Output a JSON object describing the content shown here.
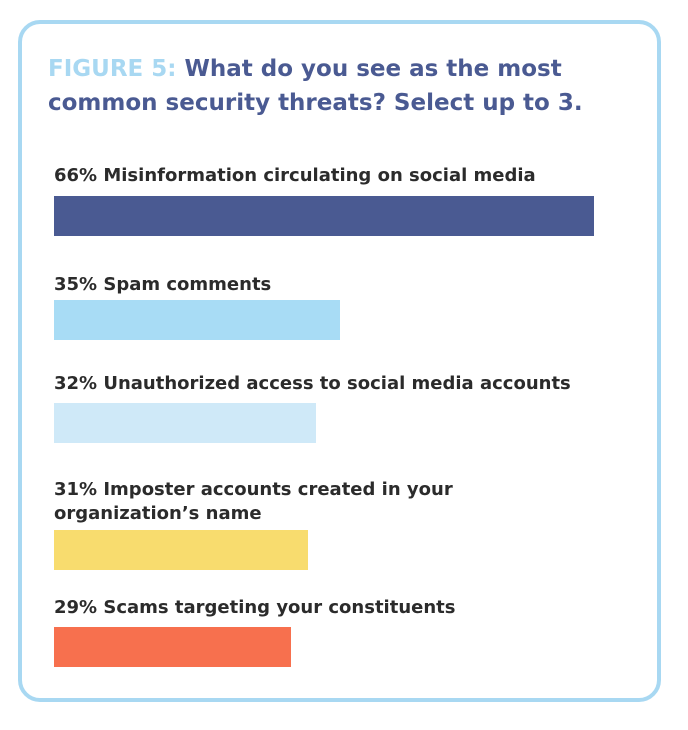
{
  "figure": {
    "label": "FIGURE 5:",
    "title": "What do you see as the most common security threats? Select up to 3."
  },
  "chart_data": {
    "type": "bar",
    "orientation": "horizontal",
    "categories": [
      "Misinformation circulating on social media",
      "Spam comments",
      "Unauthorized access to social media accounts",
      "Imposter accounts created in your organization’s name",
      "Scams targeting your constituents"
    ],
    "values": [
      66,
      35,
      32,
      31,
      29
    ],
    "value_labels": [
      "66%",
      "35%",
      "32%",
      "31%",
      "29%"
    ],
    "colors": [
      "#4a5a92",
      "#a8dcf5",
      "#cfe9f8",
      "#f8dc6e",
      "#f7704e"
    ],
    "title": "What do you see as the most common security threats? Select up to 3.",
    "xlim": [
      0,
      66
    ],
    "grid": false,
    "legend": "none"
  },
  "items": [
    {
      "text": "66% Misinformation circulating on social media"
    },
    {
      "text": "35% Spam comments"
    },
    {
      "text": "32% Unauthorized access to social media accounts"
    },
    {
      "text": "31% Imposter accounts created in your organization’s name"
    },
    {
      "text": "29% Scams targeting your constituents"
    }
  ],
  "colors": {
    "border": "#a8d8f2",
    "title": "#4a5a92",
    "figure_label": "#a8d8f2",
    "text": "#2b2b2b"
  }
}
